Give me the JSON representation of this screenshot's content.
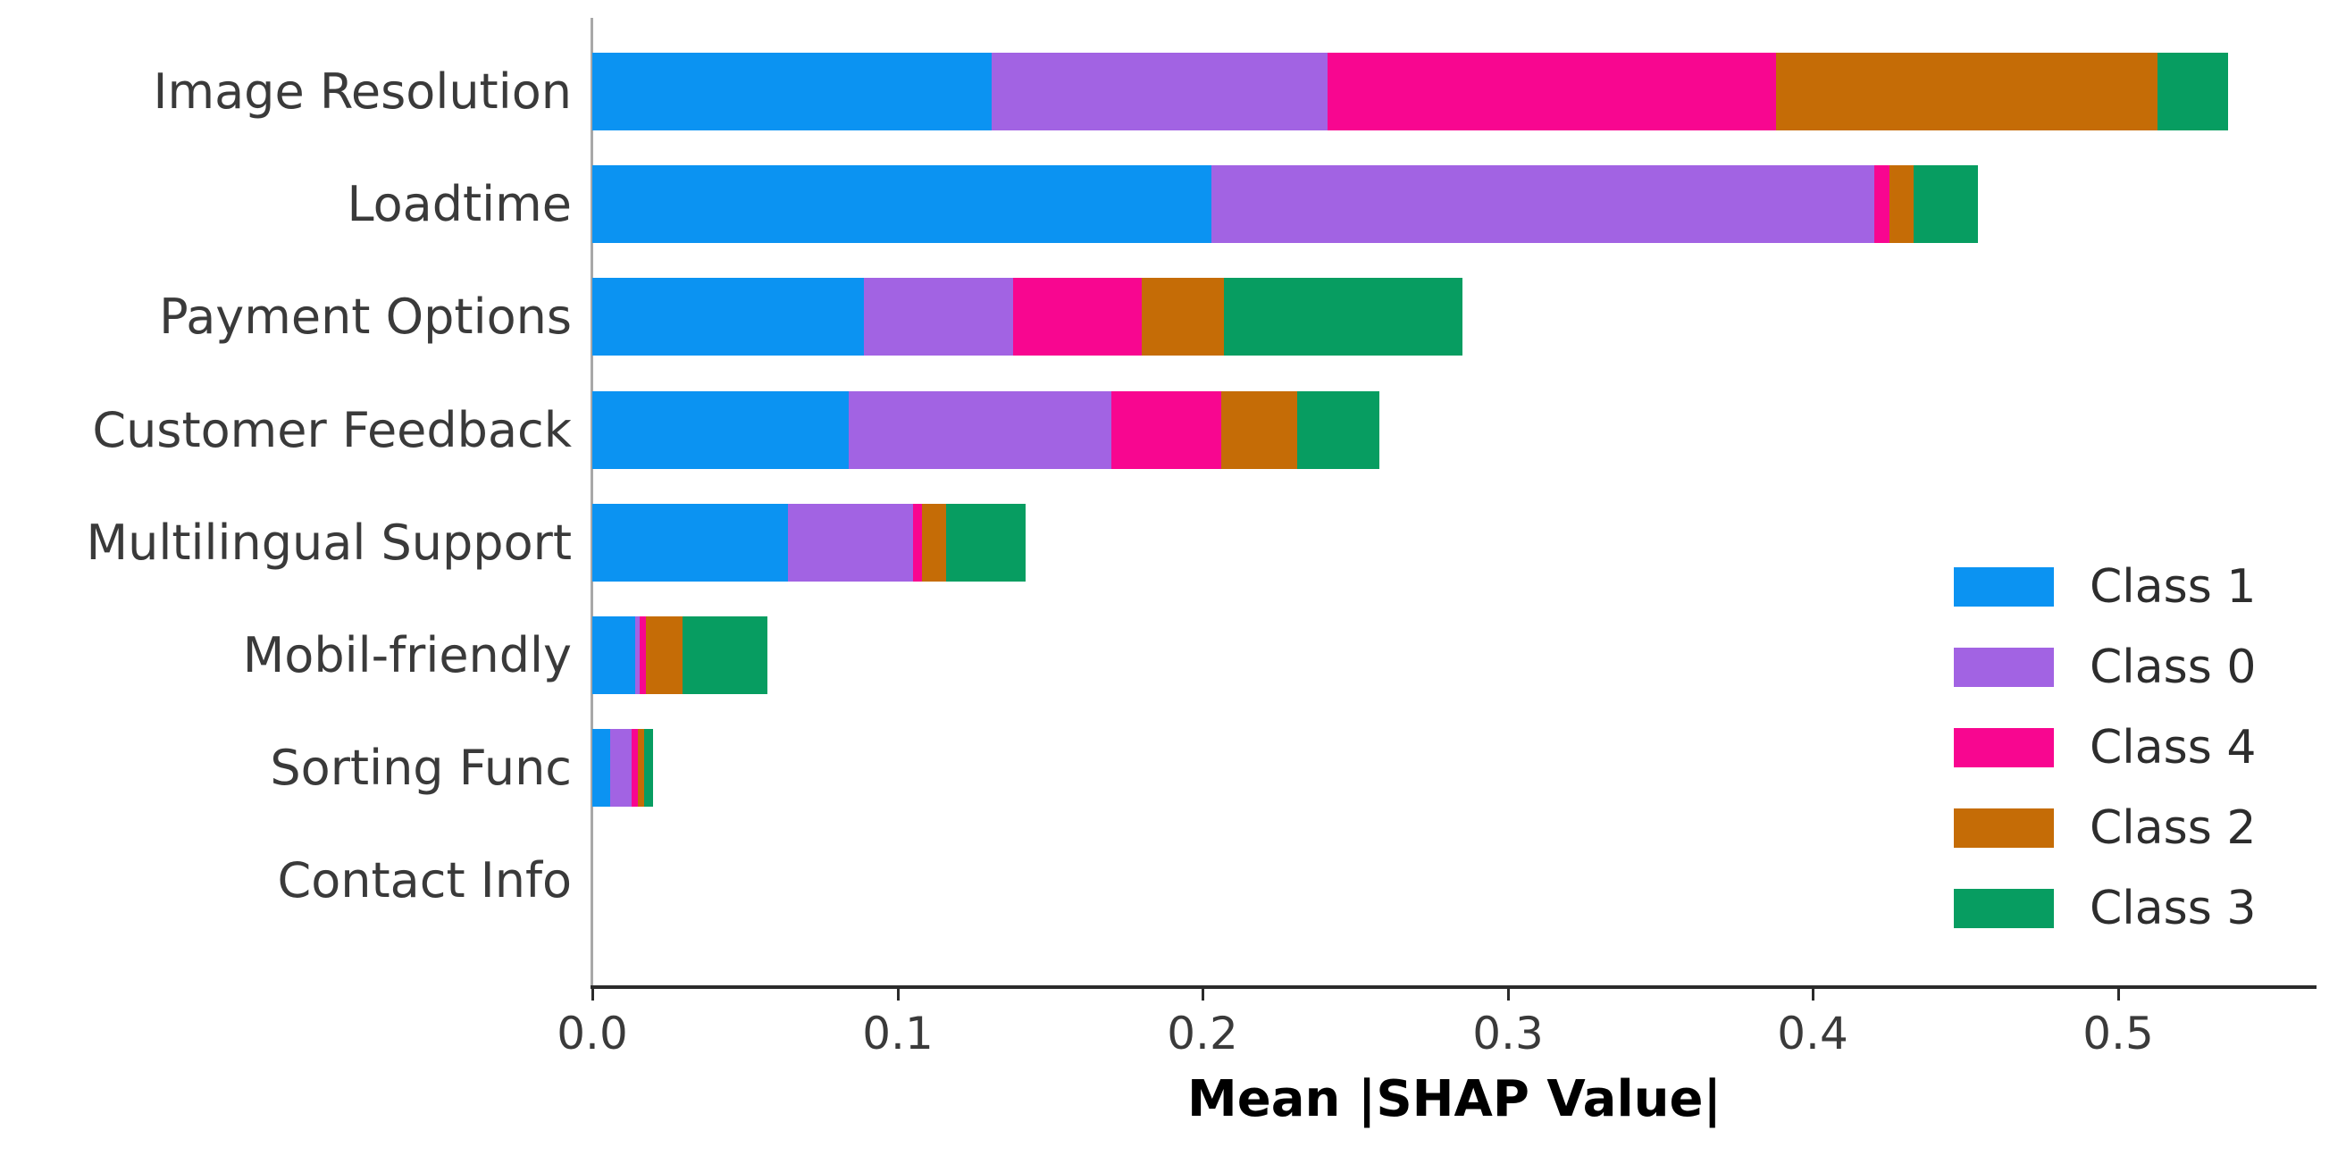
{
  "chart_data": {
    "type": "bar",
    "orientation": "horizontal",
    "stacked": true,
    "title": "",
    "xlabel": "Mean |SHAP Value|",
    "ylabel": "",
    "grid": false,
    "xlim": [
      0,
      0.565
    ],
    "xticks": [
      0.0,
      0.1,
      0.2,
      0.3,
      0.4,
      0.5
    ],
    "xtick_labels": [
      "0.0",
      "0.1",
      "0.2",
      "0.3",
      "0.4",
      "0.5"
    ],
    "categories": [
      "Image Resolution",
      "Loadtime",
      "Payment Options",
      "Customer Feedback",
      "Multilingual Support",
      "Mobil-friendly",
      "Sorting Func",
      "Contact Info"
    ],
    "series": [
      {
        "name": "Class 1",
        "color": "#0b93f2",
        "values": [
          0.131,
          0.203,
          0.089,
          0.084,
          0.064,
          0.014,
          0.006,
          0
        ]
      },
      {
        "name": "Class 0",
        "color": "#a263e3",
        "values": [
          0.11,
          0.217,
          0.049,
          0.086,
          0.041,
          0.0015,
          0.007,
          0
        ]
      },
      {
        "name": "Class 4",
        "color": "#f80690",
        "values": [
          0.147,
          0.005,
          0.042,
          0.036,
          0.003,
          0.002,
          0.002,
          0
        ]
      },
      {
        "name": "Class 2",
        "color": "#c56c06",
        "values": [
          0.125,
          0.008,
          0.027,
          0.025,
          0.008,
          0.012,
          0.002,
          0
        ]
      },
      {
        "name": "Class 3",
        "color": "#079d61",
        "values": [
          0.023,
          0.021,
          0.078,
          0.027,
          0.026,
          0.028,
          0.003,
          0
        ]
      }
    ],
    "legend_position": "lower right",
    "legend_entries": [
      "Class 1",
      "Class 0",
      "Class 4",
      "Class 2",
      "Class 3"
    ]
  },
  "style": {
    "background": "#ffffff",
    "y_spine_color": "#a8a8a8",
    "x_spine_color": "#2b2b2b",
    "tick_color": "#2b2b2b",
    "label_color": "#3a3a3a",
    "axis_title_color": "#000000"
  }
}
